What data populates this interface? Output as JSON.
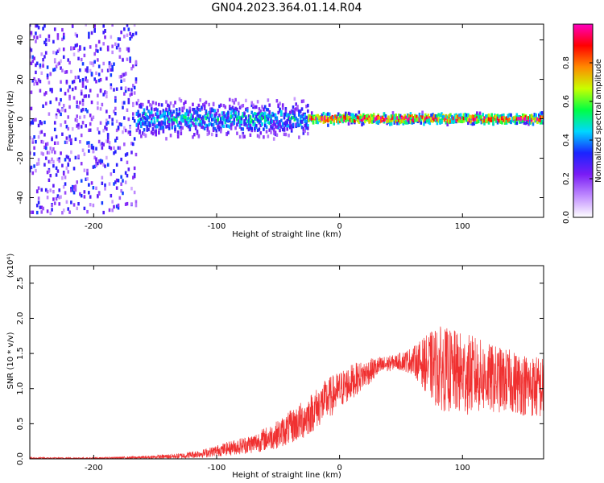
{
  "title": "GN04.2023.364.01.14.R04",
  "chart_data": [
    {
      "type": "heatmap",
      "xlabel": "Height of straight line (km)",
      "ylabel": "Frequency (Hz)",
      "xlim": [
        -252,
        166
      ],
      "ylim": [
        -50,
        48
      ],
      "x_ticks": [
        -200,
        -100,
        0,
        100
      ],
      "y_ticks": [
        -40,
        -20,
        0,
        20,
        40
      ],
      "colorbar": {
        "label": "Normalized spectral amplitude",
        "range": [
          0,
          1
        ],
        "ticks": [
          "0.0",
          "0.2",
          "0.4",
          "0.6",
          "0.8"
        ],
        "colors": [
          "#ffffff",
          "#c08cff",
          "#7a1cf5",
          "#1a24ff",
          "#00d7ff",
          "#00ff44",
          "#c8ff00",
          "#ff8a00",
          "#ff0000",
          "#ff00c0"
        ]
      },
      "regions": [
        {
          "x_range": [
            -252,
            -165
          ],
          "freq_spread": 48,
          "amplitude": 0.2
        },
        {
          "x_range": [
            -165,
            -25
          ],
          "freq_spread": 10,
          "amplitude": 0.45
        },
        {
          "x_range": [
            -25,
            166
          ],
          "freq_spread": 3,
          "amplitude": 0.9
        }
      ]
    },
    {
      "type": "line",
      "xlabel": "Height of straight line (km)",
      "ylabel": "SNR (10 * v/v)",
      "y_multiplier": "(x10⁴)",
      "xlim": [
        -252,
        166
      ],
      "ylim": [
        0,
        2.75
      ],
      "x_ticks": [
        -200,
        -100,
        0,
        100
      ],
      "y_ticks": [
        "0.0",
        "0.5",
        "1.0",
        "1.5",
        "2.0",
        "2.5"
      ],
      "color": "#f03030",
      "envelope": {
        "x": [
          -252,
          -200,
          -160,
          -130,
          -110,
          -90,
          -70,
          -50,
          -30,
          -10,
          10,
          30,
          45,
          60,
          70,
          80,
          90,
          100,
          110,
          120,
          140,
          166
        ],
        "mean": [
          0.01,
          0.01,
          0.02,
          0.04,
          0.08,
          0.15,
          0.22,
          0.35,
          0.55,
          0.85,
          1.1,
          1.3,
          1.38,
          1.4,
          1.35,
          1.3,
          1.25,
          1.2,
          1.2,
          1.15,
          1.1,
          1.0
        ],
        "amp": [
          0.01,
          0.01,
          0.02,
          0.04,
          0.06,
          0.1,
          0.14,
          0.2,
          0.28,
          0.3,
          0.25,
          0.15,
          0.1,
          0.2,
          0.4,
          0.6,
          0.6,
          0.6,
          0.55,
          0.5,
          0.45,
          0.45
        ]
      }
    }
  ]
}
